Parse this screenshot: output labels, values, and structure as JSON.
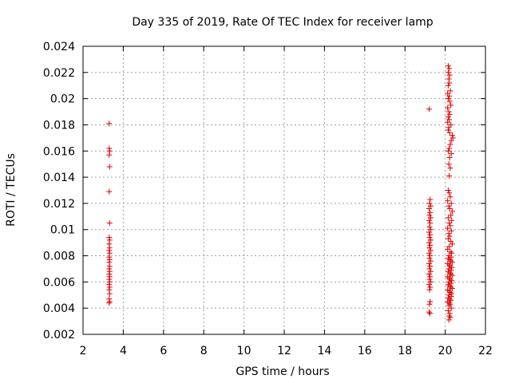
{
  "chart_data": {
    "type": "scatter",
    "title": "Day 335 of 2019, Rate Of TEC Index for receiver lamp",
    "xlabel": "GPS time / hours",
    "ylabel": "ROTI / TECUs",
    "xlim": [
      2,
      22
    ],
    "ylim": [
      0.002,
      0.024
    ],
    "xticks": [
      "2",
      "4",
      "6",
      "8",
      "10",
      "12",
      "14",
      "16",
      "18",
      "20",
      "22"
    ],
    "yticks": [
      "0.002",
      "0.004",
      "0.006",
      "0.008",
      "0.01",
      "0.012",
      "0.014",
      "0.016",
      "0.018",
      "0.02",
      "0.022",
      "0.024"
    ],
    "grid": true,
    "marker": "+",
    "color": "#e00000",
    "series": [
      {
        "name": "ROTI",
        "points": [
          [
            3.3,
            0.0181
          ],
          [
            3.3,
            0.0162
          ],
          [
            3.32,
            0.016
          ],
          [
            3.3,
            0.0157
          ],
          [
            3.32,
            0.0148
          ],
          [
            3.3,
            0.0129
          ],
          [
            3.32,
            0.0105
          ],
          [
            3.3,
            0.0094
          ],
          [
            3.32,
            0.0092
          ],
          [
            3.3,
            0.0089
          ],
          [
            3.32,
            0.0086
          ],
          [
            3.3,
            0.0084
          ],
          [
            3.32,
            0.0082
          ],
          [
            3.3,
            0.0079
          ],
          [
            3.32,
            0.0077
          ],
          [
            3.3,
            0.0075
          ],
          [
            3.32,
            0.0072
          ],
          [
            3.3,
            0.007
          ],
          [
            3.32,
            0.0068
          ],
          [
            3.3,
            0.0066
          ],
          [
            3.32,
            0.0064
          ],
          [
            3.3,
            0.0062
          ],
          [
            3.32,
            0.006
          ],
          [
            3.3,
            0.0058
          ],
          [
            3.32,
            0.0056
          ],
          [
            3.3,
            0.0054
          ],
          [
            3.32,
            0.0051
          ],
          [
            3.3,
            0.0047
          ],
          [
            3.32,
            0.0045
          ],
          [
            3.3,
            0.0044
          ],
          [
            19.2,
            0.0192
          ],
          [
            19.25,
            0.0123
          ],
          [
            19.22,
            0.012
          ],
          [
            19.28,
            0.0118
          ],
          [
            19.2,
            0.0116
          ],
          [
            19.25,
            0.0113
          ],
          [
            19.22,
            0.0111
          ],
          [
            19.28,
            0.0109
          ],
          [
            19.2,
            0.0107
          ],
          [
            19.25,
            0.0105
          ],
          [
            19.22,
            0.0102
          ],
          [
            19.28,
            0.01
          ],
          [
            19.2,
            0.0098
          ],
          [
            19.25,
            0.0096
          ],
          [
            19.22,
            0.0094
          ],
          [
            19.28,
            0.0092
          ],
          [
            19.2,
            0.009
          ],
          [
            19.25,
            0.0088
          ],
          [
            19.22,
            0.0086
          ],
          [
            19.28,
            0.0084
          ],
          [
            19.2,
            0.0082
          ],
          [
            19.25,
            0.008
          ],
          [
            19.22,
            0.0078
          ],
          [
            19.28,
            0.0076
          ],
          [
            19.2,
            0.0074
          ],
          [
            19.25,
            0.0072
          ],
          [
            19.22,
            0.007
          ],
          [
            19.28,
            0.0068
          ],
          [
            19.2,
            0.0066
          ],
          [
            19.25,
            0.0064
          ],
          [
            19.22,
            0.0062
          ],
          [
            19.28,
            0.006
          ],
          [
            19.2,
            0.0058
          ],
          [
            19.25,
            0.0056
          ],
          [
            19.22,
            0.0054
          ],
          [
            19.25,
            0.0045
          ],
          [
            19.22,
            0.0043
          ],
          [
            19.2,
            0.0037
          ],
          [
            19.25,
            0.0036
          ],
          [
            20.15,
            0.0225
          ],
          [
            20.2,
            0.0223
          ],
          [
            20.15,
            0.022
          ],
          [
            20.22,
            0.0218
          ],
          [
            20.18,
            0.0215
          ],
          [
            20.2,
            0.0212
          ],
          [
            20.15,
            0.021
          ],
          [
            20.25,
            0.0206
          ],
          [
            20.12,
            0.0204
          ],
          [
            20.2,
            0.0202
          ],
          [
            20.15,
            0.02
          ],
          [
            20.22,
            0.0198
          ],
          [
            20.28,
            0.0195
          ],
          [
            20.12,
            0.0193
          ],
          [
            20.18,
            0.019
          ],
          [
            20.22,
            0.0188
          ],
          [
            20.15,
            0.0186
          ],
          [
            20.2,
            0.0184
          ],
          [
            20.12,
            0.0182
          ],
          [
            20.28,
            0.018
          ],
          [
            20.18,
            0.0178
          ],
          [
            20.15,
            0.0176
          ],
          [
            20.22,
            0.0174
          ],
          [
            20.35,
            0.0172
          ],
          [
            20.38,
            0.017
          ],
          [
            20.3,
            0.0168
          ],
          [
            20.25,
            0.0165
          ],
          [
            20.2,
            0.0162
          ],
          [
            20.15,
            0.016
          ],
          [
            20.3,
            0.0158
          ],
          [
            20.22,
            0.0155
          ],
          [
            20.18,
            0.015
          ],
          [
            20.25,
            0.0147
          ],
          [
            20.2,
            0.0141
          ],
          [
            20.15,
            0.013
          ],
          [
            20.2,
            0.0128
          ],
          [
            20.25,
            0.0125
          ],
          [
            20.12,
            0.0122
          ],
          [
            20.3,
            0.012
          ],
          [
            20.18,
            0.0118
          ],
          [
            20.22,
            0.0116
          ],
          [
            20.35,
            0.0114
          ],
          [
            20.28,
            0.0111
          ],
          [
            20.15,
            0.0109
          ],
          [
            20.32,
            0.0107
          ],
          [
            20.2,
            0.0105
          ],
          [
            20.25,
            0.0103
          ],
          [
            20.12,
            0.0101
          ],
          [
            20.3,
            0.0099
          ],
          [
            20.18,
            0.0097
          ],
          [
            20.22,
            0.0095
          ],
          [
            20.15,
            0.0093
          ],
          [
            20.28,
            0.0091
          ],
          [
            20.35,
            0.0089
          ],
          [
            20.2,
            0.0087
          ],
          [
            20.12,
            0.0085
          ],
          [
            20.25,
            0.0083
          ],
          [
            20.32,
            0.0082
          ],
          [
            20.18,
            0.008
          ],
          [
            20.3,
            0.0079
          ],
          [
            20.15,
            0.0078
          ],
          [
            20.22,
            0.0077
          ],
          [
            20.28,
            0.0076
          ],
          [
            20.35,
            0.0075
          ],
          [
            20.12,
            0.0074
          ],
          [
            20.2,
            0.0073
          ],
          [
            20.25,
            0.0072
          ],
          [
            20.32,
            0.0071
          ],
          [
            20.18,
            0.007
          ],
          [
            20.3,
            0.0069
          ],
          [
            20.15,
            0.0068
          ],
          [
            20.22,
            0.0067
          ],
          [
            20.28,
            0.0066
          ],
          [
            20.35,
            0.0065
          ],
          [
            20.12,
            0.0064
          ],
          [
            20.2,
            0.0063
          ],
          [
            20.25,
            0.0062
          ],
          [
            20.32,
            0.0061
          ],
          [
            20.18,
            0.006
          ],
          [
            20.3,
            0.0059
          ],
          [
            20.15,
            0.0058
          ],
          [
            20.22,
            0.0057
          ],
          [
            20.28,
            0.0056
          ],
          [
            20.35,
            0.0055
          ],
          [
            20.12,
            0.0054
          ],
          [
            20.2,
            0.0053
          ],
          [
            20.25,
            0.0052
          ],
          [
            20.32,
            0.0051
          ],
          [
            20.18,
            0.005
          ],
          [
            20.3,
            0.0049
          ],
          [
            20.15,
            0.0048
          ],
          [
            20.22,
            0.0047
          ],
          [
            20.28,
            0.0046
          ],
          [
            20.12,
            0.0045
          ],
          [
            20.2,
            0.0044
          ],
          [
            20.25,
            0.0043
          ],
          [
            20.18,
            0.0042
          ],
          [
            20.3,
            0.004
          ],
          [
            20.15,
            0.0038
          ],
          [
            20.22,
            0.0036
          ],
          [
            20.2,
            0.0034
          ],
          [
            20.25,
            0.0033
          ],
          [
            20.18,
            0.0031
          ]
        ]
      }
    ]
  }
}
